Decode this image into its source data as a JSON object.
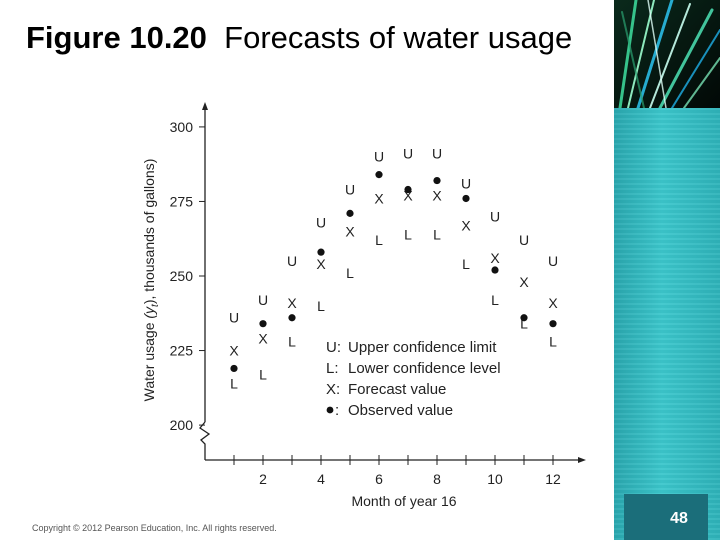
{
  "slide": {
    "title_bold": "Figure 10.20",
    "title_rest": "Forecasts of water usage",
    "copyright": "Copyright © 2012 Pearson Education, Inc. All rights reserved.",
    "page_number": "48",
    "colors": {
      "band": "#2fb3ba",
      "page_box": "#1b6e7a"
    }
  },
  "chart_data": {
    "type": "scatter",
    "xlabel": "Month of year 16",
    "ylabel_main": "Water usage ",
    "ylabel_var": "(y",
    "ylabel_sub": "t",
    "ylabel_rest": "), thousands of gallons)",
    "xticks": [
      2,
      4,
      6,
      8,
      10,
      12
    ],
    "yticks": [
      200,
      225,
      250,
      275,
      300
    ],
    "xlim": [
      0,
      13
    ],
    "ylim": [
      195,
      305
    ],
    "axis_break": true,
    "x": [
      1,
      2,
      3,
      4,
      5,
      6,
      7,
      8,
      9,
      10,
      11,
      12
    ],
    "series": [
      {
        "name": "Upper confidence limit",
        "symbol": "U",
        "values": [
          236,
          242,
          255,
          268,
          279,
          290,
          291,
          291,
          281,
          270,
          262,
          255
        ]
      },
      {
        "name": "Lower confidence level",
        "symbol": "L",
        "values": [
          214,
          217,
          228,
          240,
          251,
          262,
          264,
          264,
          254,
          242,
          234,
          228
        ]
      },
      {
        "name": "Forecast value",
        "symbol": "X",
        "values": [
          225,
          229,
          241,
          254,
          265,
          276,
          277,
          277,
          267,
          256,
          248,
          241
        ]
      },
      {
        "name": "Observed value",
        "symbol": "•",
        "values": [
          219,
          234,
          236,
          258,
          271,
          284,
          279,
          282,
          276,
          252,
          236,
          234
        ]
      }
    ],
    "legend": [
      {
        "key": "U:",
        "label": "Upper confidence limit"
      },
      {
        "key": "L:",
        "label": "Lower confidence level"
      },
      {
        "key": "X:",
        "label": "Forecast value"
      },
      {
        "key": "•:",
        "label": "Observed value"
      }
    ],
    "legend_position": "lower-right",
    "grid": false
  }
}
